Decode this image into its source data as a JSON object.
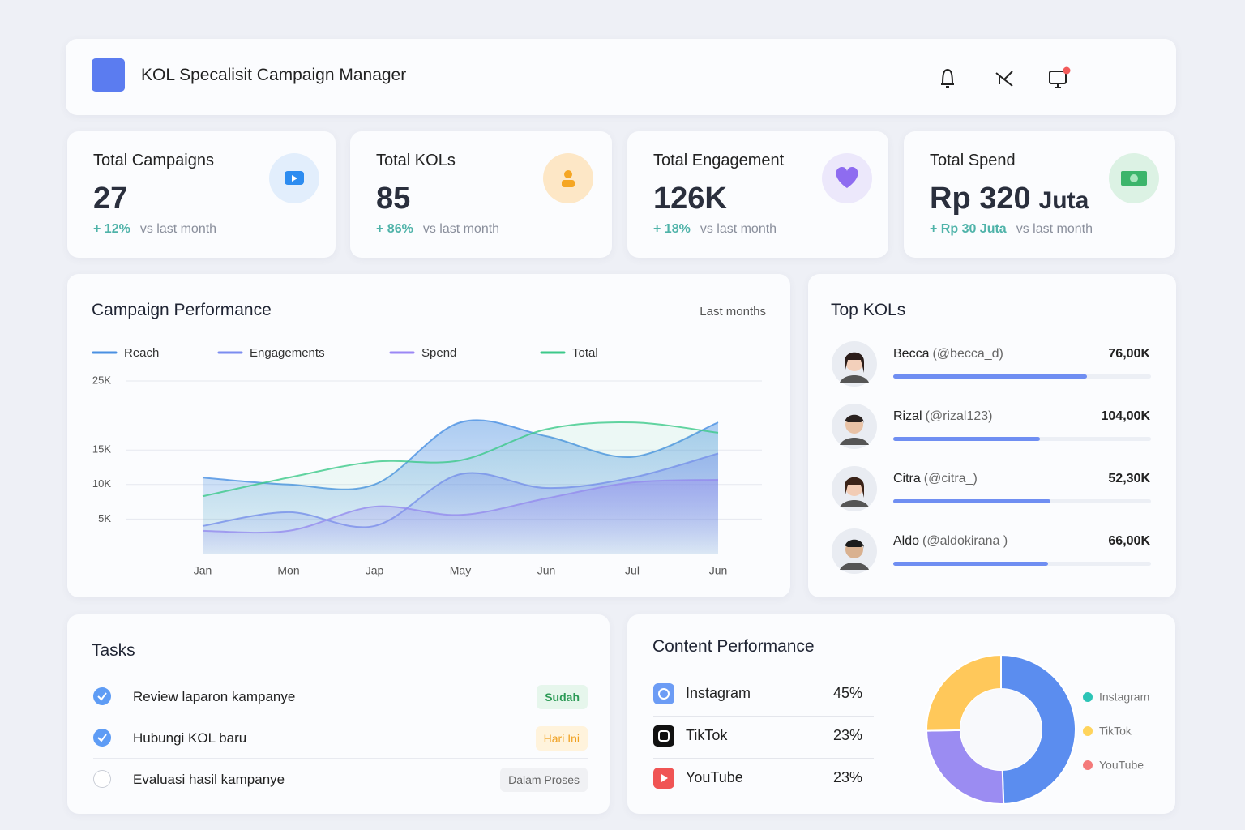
{
  "header": {
    "title": "KOL Specalisit Campaign Manager"
  },
  "stats": [
    {
      "label": "Total Campaigns",
      "value": "27",
      "change": "+ 12%",
      "note": "vs last month"
    },
    {
      "label": "Total KOLs",
      "value": "85",
      "change": "+ 86%",
      "note": "vs last month"
    },
    {
      "label": "Total Engagement",
      "value": "126K",
      "change": "+ 18%",
      "note": "vs last month"
    },
    {
      "label": "Total Spend",
      "value": "Rp 320",
      "unit": "Juta",
      "change": "+ Rp 30 Juta",
      "note": "vs last month"
    }
  ],
  "performance": {
    "title": "Campaign Performance",
    "period": "Last months"
  },
  "chart_data": [
    {
      "type": "area",
      "categories": [
        "Jan",
        "Mon",
        "Jap",
        "May",
        "Jun",
        "Jul",
        "Jun"
      ],
      "series": [
        {
          "name": "Reach",
          "color": "#4a90e2",
          "values": [
            11000,
            10000,
            10000,
            19000,
            17000,
            14000,
            19000
          ]
        },
        {
          "name": "Engagements",
          "color": "#7b8cf0",
          "values": [
            4000,
            6000,
            4000,
            11500,
            9500,
            11000,
            14500
          ]
        },
        {
          "name": "Spend",
          "color": "#9b87f5",
          "values": [
            3300,
            3300,
            6800,
            5600,
            8000,
            10300,
            10700
          ]
        },
        {
          "name": "Total",
          "color": "#3cc98a",
          "values": [
            8300,
            11000,
            13300,
            13500,
            18000,
            19000,
            17500
          ]
        }
      ],
      "ylim": [
        0,
        25000
      ],
      "yticks": [
        {
          "value": 5000,
          "label": "5K"
        },
        {
          "value": 10000,
          "label": "10K"
        },
        {
          "value": 15000,
          "label": "15K"
        },
        {
          "value": 25000,
          "label": "25K"
        }
      ],
      "grid": true
    },
    {
      "type": "pie",
      "categories": [
        "Instagram",
        "TikTok",
        "YouTube"
      ],
      "values": [
        45,
        23,
        23
      ],
      "colors": [
        "#5b8def",
        "#9b8cf2",
        "#ffc85a"
      ],
      "legend_colors": [
        "#2cc4b6",
        "#ffd45c",
        "#f47a7a"
      ]
    }
  ],
  "top_kols": {
    "title": "Top KOLs",
    "items": [
      {
        "name": "Becca",
        "handle": "(@becca_d)",
        "value": "76,00K",
        "progress": 75
      },
      {
        "name": "Rizal",
        "handle": "(@rizal123)",
        "value": "104,00K",
        "progress": 57
      },
      {
        "name": "Citra",
        "handle": "(@citra_)",
        "value": "52,30K",
        "progress": 61
      },
      {
        "name": "Aldo",
        "handle": "(@aldokirana )",
        "value": "66,00K",
        "progress": 60
      }
    ]
  },
  "tasks": {
    "title": "Tasks",
    "items": [
      {
        "text": "Review laparon kampanye",
        "done": true,
        "status": "Sudah"
      },
      {
        "text": "Hubungi KOL baru",
        "done": true,
        "status": "Hari Ini"
      },
      {
        "text": "Evaluasi hasil kampanye",
        "done": false,
        "status": "Dalam Proses"
      }
    ]
  },
  "content_performance": {
    "title": "Content Performance",
    "items": [
      {
        "name": "Instagram",
        "share": "45%"
      },
      {
        "name": "TikTok",
        "share": "23%"
      },
      {
        "name": "YouTube",
        "share": "23%"
      }
    ]
  }
}
